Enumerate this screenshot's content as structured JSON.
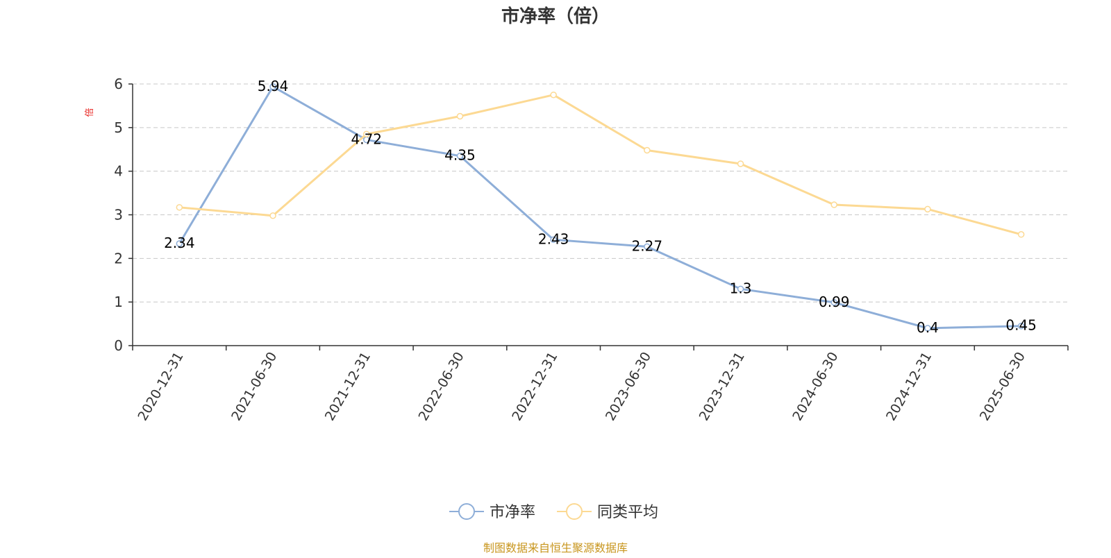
{
  "chart_data": {
    "type": "line",
    "title": "市净率（倍）",
    "ylabel": "倍",
    "ylim": [
      0,
      6
    ],
    "yticks": [
      "0",
      "1",
      "2",
      "3",
      "4",
      "5",
      "6"
    ],
    "categories": [
      "2020-12-31",
      "2021-06-30",
      "2021-12-31",
      "2022-06-30",
      "2022-12-31",
      "2023-06-30",
      "2023-12-31",
      "2024-06-30",
      "2024-12-31",
      "2025-06-30"
    ],
    "grid": true,
    "legend_position": "bottom",
    "series": [
      {
        "name": "市净率",
        "color": "#8eaed8",
        "values": [
          2.34,
          5.94,
          4.72,
          4.35,
          2.43,
          2.27,
          1.3,
          0.99,
          0.4,
          0.45
        ],
        "labels": [
          "2.34",
          "5.94",
          "4.72",
          "4.35",
          "2.43",
          "2.27",
          "1.3",
          "0.99",
          "0.4",
          "0.45"
        ]
      },
      {
        "name": "同类平均",
        "color": "#fcd993",
        "values": [
          3.17,
          2.98,
          4.85,
          5.26,
          5.75,
          4.48,
          4.17,
          3.23,
          3.13,
          2.55
        ]
      }
    ],
    "source": "制图数据来自恒生聚源数据库"
  }
}
